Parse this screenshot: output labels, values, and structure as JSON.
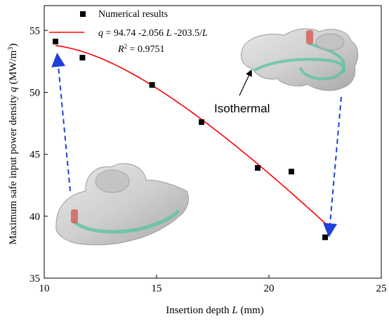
{
  "chart_data": {
    "type": "scatter",
    "xlabel": "Insertion depth L (mm)",
    "xlabel_main": "Insertion depth ",
    "xlabel_var": "L",
    "xlabel_unit": " (mm)",
    "ylabel": "Maximum safe input power density q (MW/m³)",
    "ylabel_main": "Maximum safe input power density ",
    "ylabel_var": "q",
    "ylabel_unit": " (MW/m",
    "ylabel_sup": "3",
    "ylabel_close": ")",
    "xlim": [
      10,
      25
    ],
    "ylim": [
      35,
      57
    ],
    "xticks": [
      10,
      15,
      20,
      25
    ],
    "yticks": [
      35,
      40,
      45,
      50,
      55
    ],
    "grid": false,
    "legend_position": "top-left",
    "series": [
      {
        "name": "Numerical results",
        "marker": "square",
        "color": "#000000",
        "x": [
          10.5,
          11.7,
          14.8,
          17.0,
          19.5,
          21.0,
          22.5
        ],
        "y": [
          54.1,
          52.8,
          50.6,
          47.6,
          43.9,
          43.6,
          38.3
        ]
      }
    ],
    "fit": {
      "color": "#ff0000",
      "intercept": 94.74,
      "slope": -2.056,
      "reciprocal_coef": -203.5,
      "x_range": [
        10.5,
        22.5
      ],
      "legend_label": {
        "q": "q",
        "eq_text": " = 94.74 -2.056 ",
        "l": "L",
        "eq_text2": " -203.5/",
        "l2": "L",
        "r2_base": "R",
        "r2_sup": "2",
        "r2_val": " = 0.9751"
      }
    },
    "annotations": {
      "isothermal": "Isothermal",
      "arrow_color": "#1f3fd8"
    }
  }
}
